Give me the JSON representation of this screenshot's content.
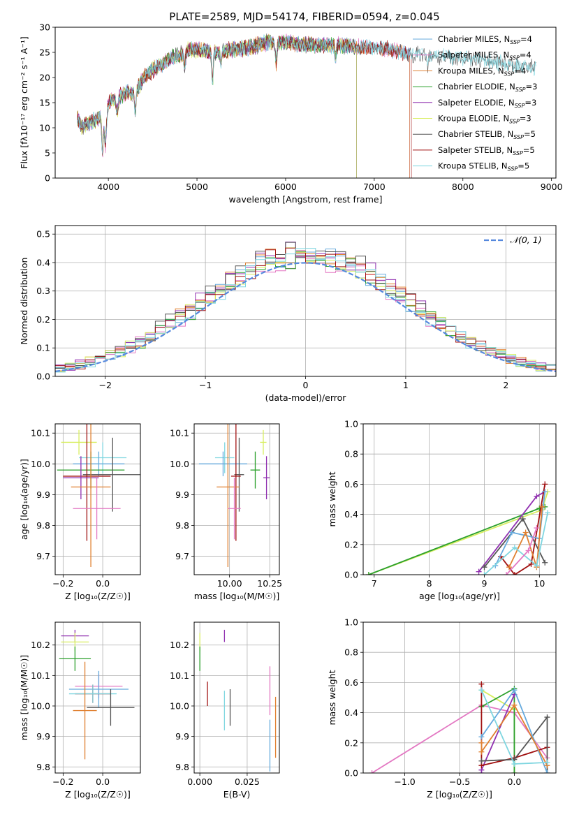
{
  "figure": {
    "title": "PLATE=2589, MJD=54174, FIBERID=0594, z=0.045"
  },
  "colors": {
    "chabrier_miles": "#66aadd",
    "salpeter_miles": "#e377c2",
    "kroupa_miles": "#e08030",
    "chabrier_elodie": "#2ca02c",
    "salpeter_elodie": "#9030b0",
    "kroupa_elodie": "#d8ee60",
    "chabrier_stelib": "#555555",
    "salpeter_stelib": "#a01010",
    "kroupa_stelib": "#7fd6e0",
    "gaussian": "#5588dd",
    "grid": "#b0b0b0"
  },
  "chart_data": [
    {
      "id": "spectrum",
      "type": "line",
      "xlabel": "wavelength [Angstrom, rest frame]",
      "ylabel": "Flux [fλ10⁻¹⁷ erg cm⁻² s⁻¹ A⁻¹]",
      "xlim": [
        3400,
        9050
      ],
      "ylim": [
        0,
        30
      ],
      "xticks": [
        4000,
        5000,
        6000,
        7000,
        8000,
        9000
      ],
      "yticks": [
        0,
        5,
        10,
        15,
        20,
        25,
        30
      ],
      "grid": false,
      "legend_position": "right",
      "continuum": {
        "x": [
          3650,
          3700,
          3800,
          3900,
          3950,
          4000,
          4100,
          4200,
          4300,
          4400,
          4500,
          4600,
          4700,
          4800,
          4900,
          5000,
          5200,
          5400,
          5600,
          5800,
          6000,
          6200,
          6400,
          6600,
          6800,
          7000,
          7200,
          7400,
          7600,
          7800,
          8000,
          8200,
          8400,
          8600,
          8800
        ],
        "y": [
          12,
          10,
          11,
          12,
          11,
          15,
          16,
          17,
          17,
          20,
          21.5,
          22.5,
          24,
          24.5,
          25.5,
          25.5,
          25,
          25.5,
          26,
          27,
          27,
          26.5,
          26.5,
          26.5,
          26,
          26,
          25.5,
          24.5,
          24.5,
          24,
          24,
          23.5,
          23,
          22.5,
          22
        ]
      },
      "absorption_lines": [
        {
          "x": 3934,
          "depth": 6
        },
        {
          "x": 3969,
          "depth": 6
        },
        {
          "x": 4101,
          "depth": 3
        },
        {
          "x": 4304,
          "depth": 4
        },
        {
          "x": 4861,
          "depth": 3
        },
        {
          "x": 5175,
          "depth": 6
        },
        {
          "x": 5270,
          "depth": 2.5
        },
        {
          "x": 5893,
          "depth": 4
        },
        {
          "x": 6563,
          "depth": 3
        },
        {
          "x": 7600,
          "depth": 2
        }
      ],
      "series": [
        {
          "name": "Chabrier MILES, N_SSP=4",
          "color_key": "chabrier_miles",
          "xmax": 7400
        },
        {
          "name": "Salpeter MILES, N_SSP=4",
          "color_key": "salpeter_miles",
          "xmax": 7400
        },
        {
          "name": "Kroupa MILES, N_SSP=4",
          "color_key": "kroupa_miles",
          "xmax": 7400
        },
        {
          "name": "Chabrier ELODIE, N_SSP=3",
          "color_key": "chabrier_elodie",
          "xmax": 6800
        },
        {
          "name": "Salpeter ELODIE, N_SSP=3",
          "color_key": "salpeter_elodie",
          "xmax": 6800
        },
        {
          "name": "Kroupa ELODIE, N_SSP=3",
          "color_key": "kroupa_elodie",
          "xmax": 6800
        },
        {
          "name": "Chabrier STELIB, N_SSP=5",
          "color_key": "chabrier_stelib",
          "xmax": 8830
        },
        {
          "name": "Salpeter STELIB, N_SSP=5",
          "color_key": "salpeter_stelib",
          "xmax": 7420
        },
        {
          "name": "Kroupa STELIB, N_SSP=5",
          "color_key": "kroupa_stelib",
          "xmax": 8830
        }
      ]
    },
    {
      "id": "residuals",
      "type": "histogram",
      "xlabel": "(data-model)/error",
      "ylabel": "Normed distribution",
      "xlim": [
        -2.5,
        2.5
      ],
      "ylim": [
        0,
        0.53
      ],
      "xticks": [
        -2,
        -1,
        0,
        1,
        2
      ],
      "yticks": [
        0.0,
        0.1,
        0.2,
        0.3,
        0.4,
        0.5
      ],
      "grid": true,
      "legend_position": "top-right",
      "gaussian_label": "𝒩(0, 1)",
      "bin_width": 0.1,
      "bin_start": -2.5,
      "series_color_keys": [
        "chabrier_miles",
        "salpeter_miles",
        "kroupa_miles",
        "chabrier_elodie",
        "salpeter_elodie",
        "kroupa_elodie",
        "chabrier_stelib",
        "salpeter_stelib",
        "kroupa_stelib"
      ]
    },
    {
      "id": "age_vs_Z",
      "type": "errorbar",
      "xlabel": "Z [log₁₀(Z/Z☉)]",
      "ylabel": "age  [log₁₀(age/yr)]",
      "xlim": [
        -0.24,
        0.19
      ],
      "ylim": [
        9.64,
        10.13
      ],
      "xticks": [
        -0.2,
        0.0
      ],
      "yticks": [
        9.7,
        9.8,
        9.9,
        10.0,
        10.1
      ],
      "grid": true,
      "points": [
        {
          "x": -0.12,
          "xerr": 0.09,
          "y": 10.07,
          "yerr": 0.04,
          "color_key": "kroupa_elodie"
        },
        {
          "x": 0.0,
          "xerr": 0.12,
          "y": 10.02,
          "yerr": 0.05,
          "color_key": "kroupa_stelib"
        },
        {
          "x": -0.02,
          "xerr": 0.13,
          "y": 10.0,
          "yerr": 0.04,
          "color_key": "chabrier_miles"
        },
        {
          "x": -0.06,
          "xerr": 0.17,
          "y": 9.98,
          "yerr": 0.06,
          "color_key": "chabrier_elodie"
        },
        {
          "x": 0.05,
          "xerr": 0.15,
          "y": 9.965,
          "yerr": 0.12,
          "color_key": "chabrier_stelib"
        },
        {
          "x": -0.08,
          "xerr": 0.12,
          "y": 9.96,
          "yerr": 0.21,
          "color_key": "salpeter_stelib"
        },
        {
          "x": -0.11,
          "xerr": 0.09,
          "y": 9.955,
          "yerr": 0.07,
          "color_key": "salpeter_elodie"
        },
        {
          "x": -0.06,
          "xerr": 0.1,
          "y": 9.925,
          "yerr": 0.26,
          "color_key": "kroupa_miles"
        },
        {
          "x": -0.03,
          "xerr": 0.12,
          "y": 9.855,
          "yerr": 0.1,
          "color_key": "salpeter_miles"
        }
      ]
    },
    {
      "id": "age_vs_mass",
      "type": "errorbar",
      "xlabel": "mass [log₁₀(M/M☉)]",
      "ylabel": "",
      "xlim": [
        9.78,
        10.31
      ],
      "ylim": [
        9.64,
        10.13
      ],
      "xticks": [
        10.0,
        10.25
      ],
      "yticks": [
        9.7,
        9.8,
        9.9,
        10.0,
        10.1
      ],
      "grid": true,
      "points": [
        {
          "x": 10.21,
          "xerr": 0.02,
          "y": 10.07,
          "yerr": 0.04,
          "color_key": "kroupa_elodie"
        },
        {
          "x": 9.97,
          "xerr": 0.06,
          "y": 10.02,
          "yerr": 0.05,
          "color_key": "kroupa_stelib"
        },
        {
          "x": 9.96,
          "xerr": 0.15,
          "y": 10.0,
          "yerr": 0.04,
          "color_key": "chabrier_miles"
        },
        {
          "x": 10.16,
          "xerr": 0.03,
          "y": 9.98,
          "yerr": 0.06,
          "color_key": "chabrier_elodie"
        },
        {
          "x": 10.06,
          "xerr": 0.03,
          "y": 9.965,
          "yerr": 0.12,
          "color_key": "chabrier_stelib"
        },
        {
          "x": 10.04,
          "xerr": 0.03,
          "y": 9.96,
          "yerr": 0.21,
          "color_key": "salpeter_stelib"
        },
        {
          "x": 10.23,
          "xerr": 0.02,
          "y": 9.955,
          "yerr": 0.07,
          "color_key": "salpeter_elodie"
        },
        {
          "x": 9.99,
          "xerr": 0.07,
          "y": 9.925,
          "yerr": 0.26,
          "color_key": "kroupa_miles"
        },
        {
          "x": 10.03,
          "xerr": 0.04,
          "y": 9.855,
          "yerr": 0.1,
          "color_key": "salpeter_miles"
        }
      ]
    },
    {
      "id": "weight_vs_age",
      "type": "line",
      "xlabel": "age  [log₁₀(age/yr)]",
      "ylabel": "mass weight",
      "xlim": [
        6.8,
        10.3
      ],
      "ylim": [
        0,
        1
      ],
      "xticks": [
        7,
        8,
        9,
        10
      ],
      "yticks": [
        0.0,
        0.2,
        0.4,
        0.6,
        0.8,
        1.0
      ],
      "grid": true,
      "series": [
        {
          "color_key": "kroupa_elodie",
          "x": [
            6.9,
            10.05,
            10.15
          ],
          "y": [
            0.0,
            0.43,
            0.55
          ]
        },
        {
          "color_key": "chabrier_elodie",
          "x": [
            6.9,
            10.0,
            10.1
          ],
          "y": [
            0.0,
            0.44,
            0.45
          ]
        },
        {
          "color_key": "salpeter_elodie",
          "x": [
            8.9,
            9.95,
            10.1
          ],
          "y": [
            0.02,
            0.52,
            0.55
          ]
        },
        {
          "color_key": "salpeter_stelib",
          "x": [
            9.3,
            9.55,
            9.85,
            10.1
          ],
          "y": [
            0.12,
            0.0,
            0.07,
            0.6
          ]
        },
        {
          "color_key": "chabrier_stelib",
          "x": [
            9.0,
            9.7,
            10.1
          ],
          "y": [
            0.05,
            0.37,
            0.08
          ]
        },
        {
          "color_key": "chabrier_miles",
          "x": [
            9.2,
            9.5,
            10.0,
            10.1
          ],
          "y": [
            0.06,
            0.28,
            0.24,
            0.55
          ]
        },
        {
          "color_key": "kroupa_miles",
          "x": [
            9.45,
            9.75,
            9.95,
            10.05
          ],
          "y": [
            0.05,
            0.28,
            0.05,
            0.45
          ]
        },
        {
          "color_key": "kroupa_stelib",
          "x": [
            9.0,
            9.55,
            9.95,
            10.15
          ],
          "y": [
            0.0,
            0.18,
            0.06,
            0.41
          ]
        },
        {
          "color_key": "salpeter_miles",
          "x": [
            9.4,
            9.8,
            9.95
          ],
          "y": [
            0.0,
            0.16,
            0.31
          ]
        }
      ]
    },
    {
      "id": "mass_vs_Z",
      "type": "errorbar",
      "xlabel": "Z [log₁₀(Z/Z☉)]",
      "ylabel": "mass [log₁₀(M/M☉)]",
      "xlim": [
        -0.24,
        0.19
      ],
      "ylim": [
        9.78,
        10.275
      ],
      "xticks": [
        -0.2,
        0.0
      ],
      "yticks": [
        9.8,
        9.9,
        10.0,
        10.1,
        10.2
      ],
      "grid": true,
      "points": [
        {
          "x": -0.14,
          "xerr": 0.07,
          "y": 10.23,
          "yerr": 0.02,
          "color_key": "salpeter_elodie"
        },
        {
          "x": -0.14,
          "xerr": 0.07,
          "y": 10.21,
          "yerr": 0.03,
          "color_key": "kroupa_elodie"
        },
        {
          "x": -0.14,
          "xerr": 0.08,
          "y": 10.155,
          "yerr": 0.04,
          "color_key": "chabrier_elodie"
        },
        {
          "x": -0.02,
          "xerr": 0.12,
          "y": 10.065,
          "yerr": 0.04,
          "color_key": "salpeter_miles"
        },
        {
          "x": -0.02,
          "xerr": 0.15,
          "y": 10.055,
          "yerr": 0.06,
          "color_key": "chabrier_miles"
        },
        {
          "x": -0.05,
          "xerr": 0.09,
          "y": 10.04,
          "yerr": 0.03,
          "color_key": "salpeter_stelib"
        },
        {
          "x": -0.05,
          "xerr": 0.12,
          "y": 10.04,
          "yerr": 0.03,
          "color_key": "kroupa_stelib"
        },
        {
          "x": 0.04,
          "xerr": 0.12,
          "y": 9.995,
          "yerr": 0.06,
          "color_key": "chabrier_stelib"
        },
        {
          "x": -0.09,
          "xerr": 0.06,
          "y": 9.985,
          "yerr": 0.16,
          "color_key": "kroupa_miles"
        }
      ]
    },
    {
      "id": "mass_vs_ebv",
      "type": "errorbar",
      "xlabel": "E(B-V)",
      "ylabel": "",
      "xlim": [
        -0.003,
        0.042
      ],
      "ylim": [
        9.78,
        10.275
      ],
      "xticks": [
        0.0,
        0.025
      ],
      "yticks": [
        9.8,
        9.9,
        10.0,
        10.1,
        10.2
      ],
      "grid": true,
      "points": [
        {
          "x": 0.0,
          "xerr": 0,
          "y": 10.21,
          "yerr": 0.03,
          "color_key": "kroupa_elodie"
        },
        {
          "x": 0.0,
          "xerr": 0,
          "y": 10.155,
          "yerr": 0.04,
          "color_key": "chabrier_elodie"
        },
        {
          "x": 0.013,
          "xerr": 0,
          "y": 10.23,
          "yerr": 0.02,
          "color_key": "salpeter_elodie"
        },
        {
          "x": 0.004,
          "xerr": 0,
          "y": 10.04,
          "yerr": 0.04,
          "color_key": "salpeter_stelib"
        },
        {
          "x": 0.013,
          "xerr": 0,
          "y": 9.985,
          "yerr": 0.065,
          "color_key": "kroupa_stelib"
        },
        {
          "x": 0.016,
          "xerr": 0,
          "y": 9.995,
          "yerr": 0.06,
          "color_key": "chabrier_stelib"
        },
        {
          "x": 0.037,
          "xerr": 0,
          "y": 10.05,
          "yerr": 0.08,
          "color_key": "salpeter_miles"
        },
        {
          "x": 0.037,
          "xerr": 0,
          "y": 9.87,
          "yerr": 0.085,
          "color_key": "chabrier_miles"
        },
        {
          "x": 0.04,
          "xerr": 0,
          "y": 9.93,
          "yerr": 0.1,
          "color_key": "kroupa_miles"
        }
      ]
    },
    {
      "id": "weight_vs_Z",
      "type": "line",
      "xlabel": "Z [log₁₀(Z/Z☉)]",
      "ylabel": "mass weight",
      "xlim": [
        -1.38,
        0.38
      ],
      "ylim": [
        0,
        1
      ],
      "xticks": [
        -1.0,
        -0.5,
        0.0
      ],
      "yticks": [
        0.0,
        0.2,
        0.4,
        0.6,
        0.8,
        1.0
      ],
      "grid": true,
      "series": [
        {
          "color_key": "salpeter_miles",
          "x": [
            -1.3,
            -0.3,
            0.0,
            0.3
          ],
          "y": [
            0.0,
            0.45,
            0.4,
            0.1
          ]
        },
        {
          "color_key": "kroupa_elodie",
          "x": [
            -0.3,
            0.0,
            0.0
          ],
          "y": [
            0.55,
            0.42,
            0.0
          ]
        },
        {
          "color_key": "chabrier_elodie",
          "x": [
            -0.3,
            0.0,
            0.0
          ],
          "y": [
            0.44,
            0.56,
            0.0
          ]
        },
        {
          "color_key": "salpeter_elodie",
          "x": [
            -0.3,
            -0.3,
            0.0
          ],
          "y": [
            0.0,
            0.02,
            0.52
          ]
        },
        {
          "color_key": "salpeter_stelib",
          "x": [
            -0.3,
            -0.3,
            0.0,
            0.3
          ],
          "y": [
            0.59,
            0.05,
            0.1,
            0.17
          ]
        },
        {
          "color_key": "chabrier_stelib",
          "x": [
            -0.3,
            0.0,
            0.3,
            0.3
          ],
          "y": [
            0.08,
            0.09,
            0.37,
            0.0
          ]
        },
        {
          "color_key": "chabrier_miles",
          "x": [
            -0.3,
            0.0,
            0.3
          ],
          "y": [
            0.24,
            0.55,
            0.0
          ]
        },
        {
          "color_key": "kroupa_miles",
          "x": [
            -0.3,
            -0.3,
            0.0,
            0.3
          ],
          "y": [
            0.2,
            0.14,
            0.45,
            0.05
          ]
        },
        {
          "color_key": "kroupa_stelib",
          "x": [
            -0.3,
            0.0,
            0.3
          ],
          "y": [
            0.55,
            0.06,
            0.07
          ]
        }
      ]
    }
  ]
}
